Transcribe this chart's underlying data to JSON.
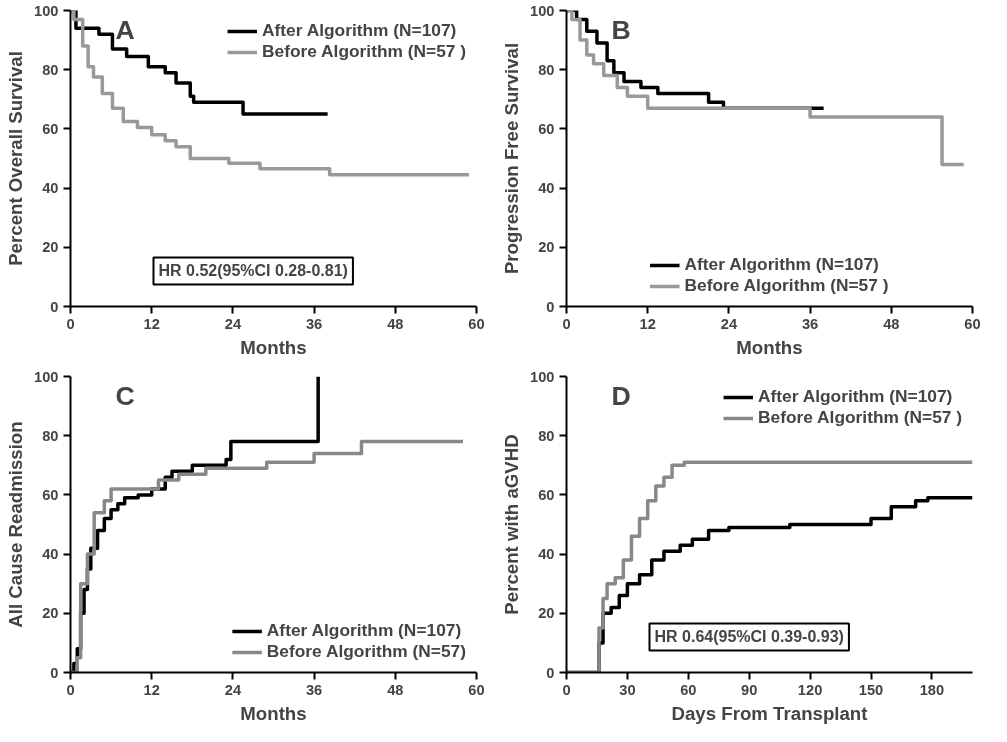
{
  "chart_data": [
    {
      "type": "step",
      "title": "A",
      "xlabel": "Months",
      "ylabel": "Percent Overall Survival",
      "xlim": [
        0,
        60
      ],
      "ylim": [
        0,
        100
      ],
      "xticks": [
        0,
        12,
        24,
        36,
        48,
        60
      ],
      "yticks": [
        0,
        20,
        40,
        60,
        80,
        100
      ],
      "grid": false,
      "legend": "top right",
      "annotations": [
        "HR 0.52(95%CI 0.28-0.81)"
      ],
      "series": [
        {
          "name": "After Algorithm (N=107)",
          "color": "#000000",
          "x": [
            0,
            0.8,
            4.2,
            6.2,
            8.3,
            11.5,
            14,
            15.6,
            17.7,
            18.2,
            25.5,
            38
          ],
          "values": [
            100,
            94,
            92,
            87,
            84.5,
            81,
            79,
            75.5,
            71,
            69,
            65,
            65
          ]
        },
        {
          "name": "Before Algorithm (N=57 )",
          "color": "#999999",
          "x": [
            0,
            0.5,
            1.8,
            2.6,
            3.4,
            4.7,
            6.2,
            7.8,
            9.9,
            12,
            14,
            15.6,
            17.7,
            23.4,
            28,
            38.3,
            58.9
          ],
          "values": [
            100,
            97,
            88,
            81,
            77.5,
            72,
            67,
            62.5,
            60.5,
            58,
            56,
            54,
            50,
            48.4,
            46.5,
            44.5,
            44.5
          ]
        }
      ]
    },
    {
      "type": "step",
      "title": "B",
      "xlabel": "Months",
      "ylabel": "Progression Free Survival",
      "xlim": [
        0,
        60
      ],
      "ylim": [
        0,
        100
      ],
      "xticks": [
        0,
        12,
        24,
        36,
        48,
        60
      ],
      "yticks": [
        0,
        20,
        40,
        60,
        80,
        100
      ],
      "grid": false,
      "legend": "bottom",
      "series": [
        {
          "name": "After Algorithm (N=107)",
          "color": "#000000",
          "x": [
            0,
            1.5,
            3,
            4.5,
            6,
            7,
            8.5,
            11,
            13.5,
            21,
            23.2,
            38
          ],
          "values": [
            100,
            97,
            93,
            89,
            83,
            79,
            76,
            74,
            72,
            69,
            67,
            67
          ]
        },
        {
          "name": "Before Algorithm (N=57 )",
          "color": "#999999",
          "x": [
            0,
            0.8,
            2,
            3,
            4,
            5.5,
            7.5,
            9,
            12,
            36,
            55.5,
            58.7
          ],
          "values": [
            100,
            97,
            90,
            85,
            82,
            78,
            74,
            71,
            67,
            64,
            48,
            48
          ]
        }
      ]
    },
    {
      "type": "step",
      "title": "C",
      "xlabel": "Months",
      "ylabel": "All Cause Readmission",
      "xlim": [
        0,
        60
      ],
      "ylim": [
        0,
        100
      ],
      "xticks": [
        0,
        12,
        24,
        36,
        48,
        60
      ],
      "yticks": [
        0,
        20,
        40,
        60,
        80,
        100
      ],
      "grid": false,
      "legend": "bottom right",
      "series": [
        {
          "name": "After Algorithm (N=107)",
          "color": "#000000",
          "x": [
            0,
            0.5,
            1,
            1.5,
            2,
            2.5,
            3,
            4,
            5,
            6,
            7,
            8,
            10,
            12,
            14,
            15,
            18,
            23,
            23.7,
            36.6
          ],
          "values": [
            0,
            3,
            8,
            20,
            28,
            35,
            42,
            48,
            52,
            55,
            57,
            59,
            60,
            62,
            66,
            68,
            70,
            72,
            78,
            100
          ]
        },
        {
          "name": "Before Algorithm (N=57)",
          "color": "#888888",
          "x": [
            0,
            1,
            1.5,
            2.5,
            3.5,
            5,
            6,
            13,
            16,
            20,
            29,
            36,
            43,
            58
          ],
          "values": [
            0,
            5,
            30,
            40,
            54,
            58,
            62,
            65,
            67,
            69,
            71,
            74,
            78,
            78
          ]
        }
      ]
    },
    {
      "type": "step",
      "title": "D",
      "xlabel": "Days From Transplant",
      "ylabel": "Percent with aGVHD",
      "xlim": [
        0,
        200
      ],
      "ylim": [
        0,
        100
      ],
      "xticks": [
        0,
        30,
        60,
        90,
        120,
        150,
        180
      ],
      "yticks": [
        0,
        20,
        40,
        60,
        80,
        100
      ],
      "grid": false,
      "legend": "top right",
      "annotations": [
        "HR 0.64(95%CI 0.39-0.93)"
      ],
      "series": [
        {
          "name": "After Algorithm (N=107)",
          "color": "#000000",
          "x": [
            0,
            14,
            16,
            18,
            22,
            26,
            30,
            36,
            42,
            48,
            56,
            62,
            70,
            80,
            110,
            150,
            160,
            172,
            178,
            200
          ],
          "values": [
            0,
            0,
            10,
            20,
            22,
            26,
            30,
            33,
            38,
            41,
            43,
            45,
            48,
            49,
            50,
            52,
            56,
            58,
            59,
            59
          ]
        },
        {
          "name": "Before Algorithm (N=57 )",
          "color": "#888888",
          "x": [
            0,
            13,
            16,
            18,
            20,
            24,
            28,
            32,
            36,
            40,
            44,
            48,
            52,
            58,
            200
          ],
          "values": [
            0,
            0,
            15,
            25,
            30,
            32,
            38,
            46,
            52,
            58,
            63,
            66,
            70,
            71,
            71
          ]
        }
      ]
    }
  ]
}
